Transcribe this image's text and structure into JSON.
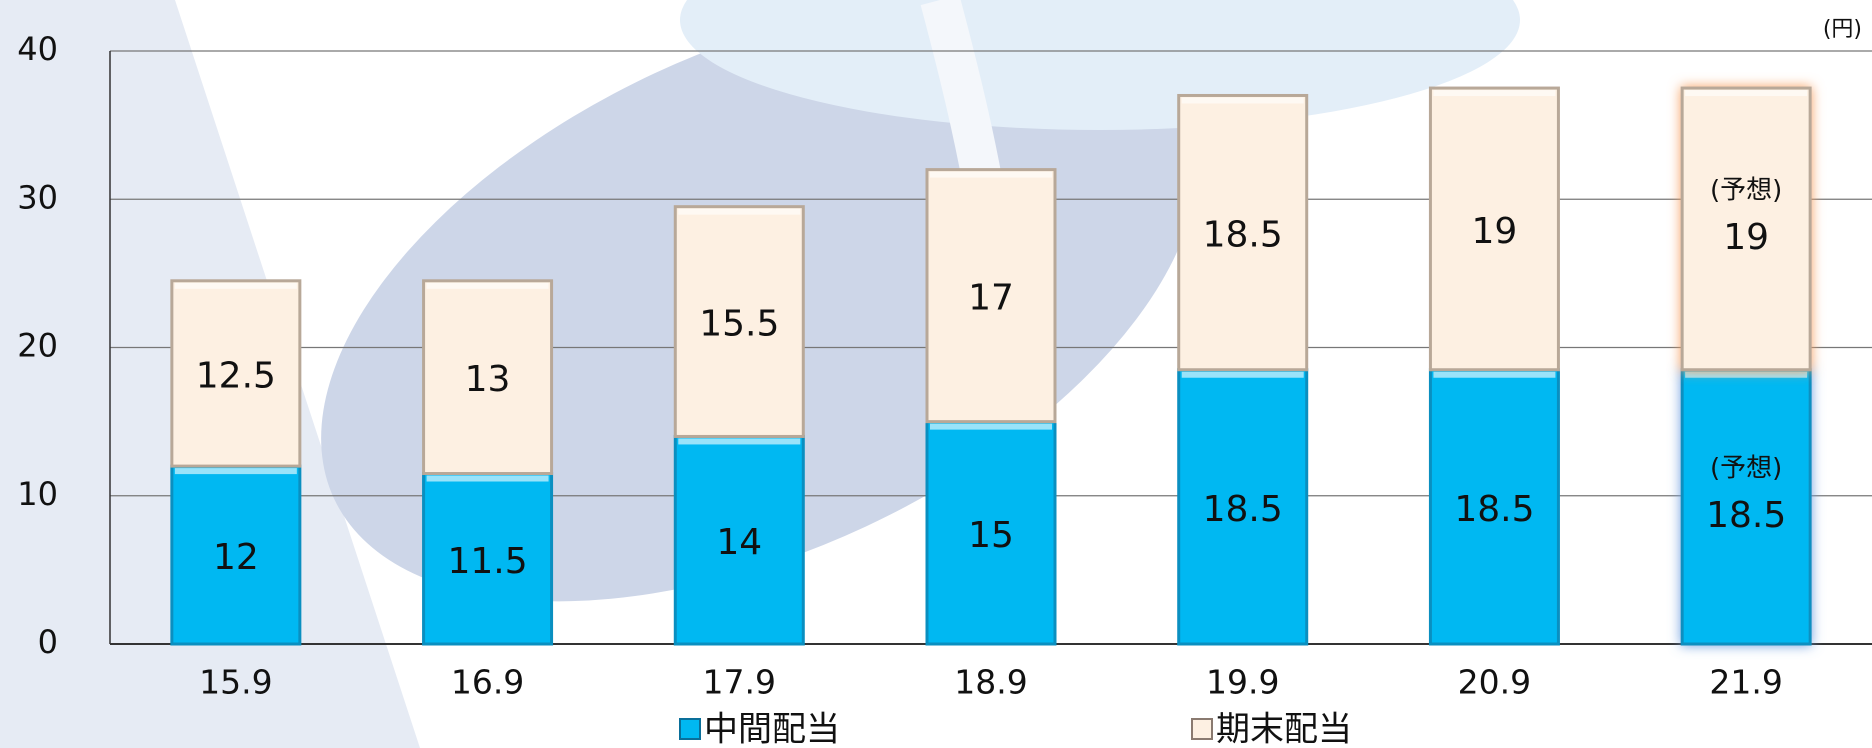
{
  "chart_data": {
    "type": "bar",
    "stacked": true,
    "unit_label": "(円)",
    "categories": [
      "15.9",
      "16.9",
      "17.9",
      "18.9",
      "19.9",
      "20.9",
      "21.9"
    ],
    "series": [
      {
        "name": "中間配当",
        "color": "#00b8f2",
        "values": [
          12,
          11.5,
          14,
          15,
          18.5,
          18.5,
          18.5
        ]
      },
      {
        "name": "期末配当",
        "color": "#fdf0e2",
        "values": [
          12.5,
          13,
          15.5,
          17,
          18.5,
          19,
          19
        ]
      }
    ],
    "annotations": [
      "(予想)",
      "(予想)"
    ],
    "ylim": [
      0,
      40
    ],
    "yticks": [
      0,
      10,
      20,
      30,
      40
    ],
    "grid": true,
    "legend": "bottom"
  }
}
